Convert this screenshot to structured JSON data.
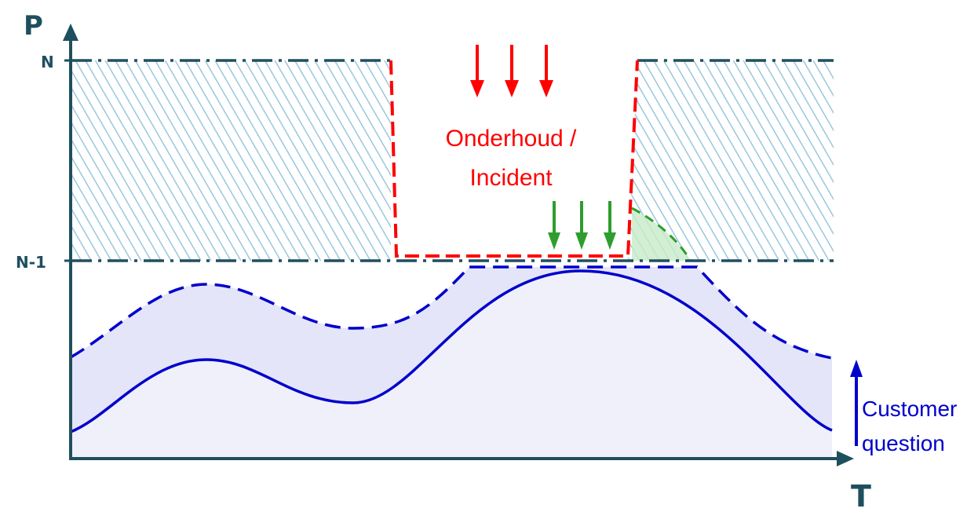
{
  "axes": {
    "y_label": "P",
    "x_label": "T",
    "levels": [
      "N",
      "N-1"
    ]
  },
  "event": {
    "line1": "Onderhoud /",
    "line2": "Incident"
  },
  "customer": {
    "line1": "Customer",
    "line2": "question"
  },
  "colors": {
    "axis": "#1e4f5f",
    "hatch": "#9cc6dc",
    "outage": "#ff0000",
    "recovery": "#2e9e2e",
    "demand": "#0000cc",
    "band_fill": "#e4e5f8",
    "base_fill": "#f0f0fb"
  },
  "icons": [
    "red-down-arrow-icon",
    "green-down-arrow-icon",
    "blue-up-arrow-icon"
  ]
}
